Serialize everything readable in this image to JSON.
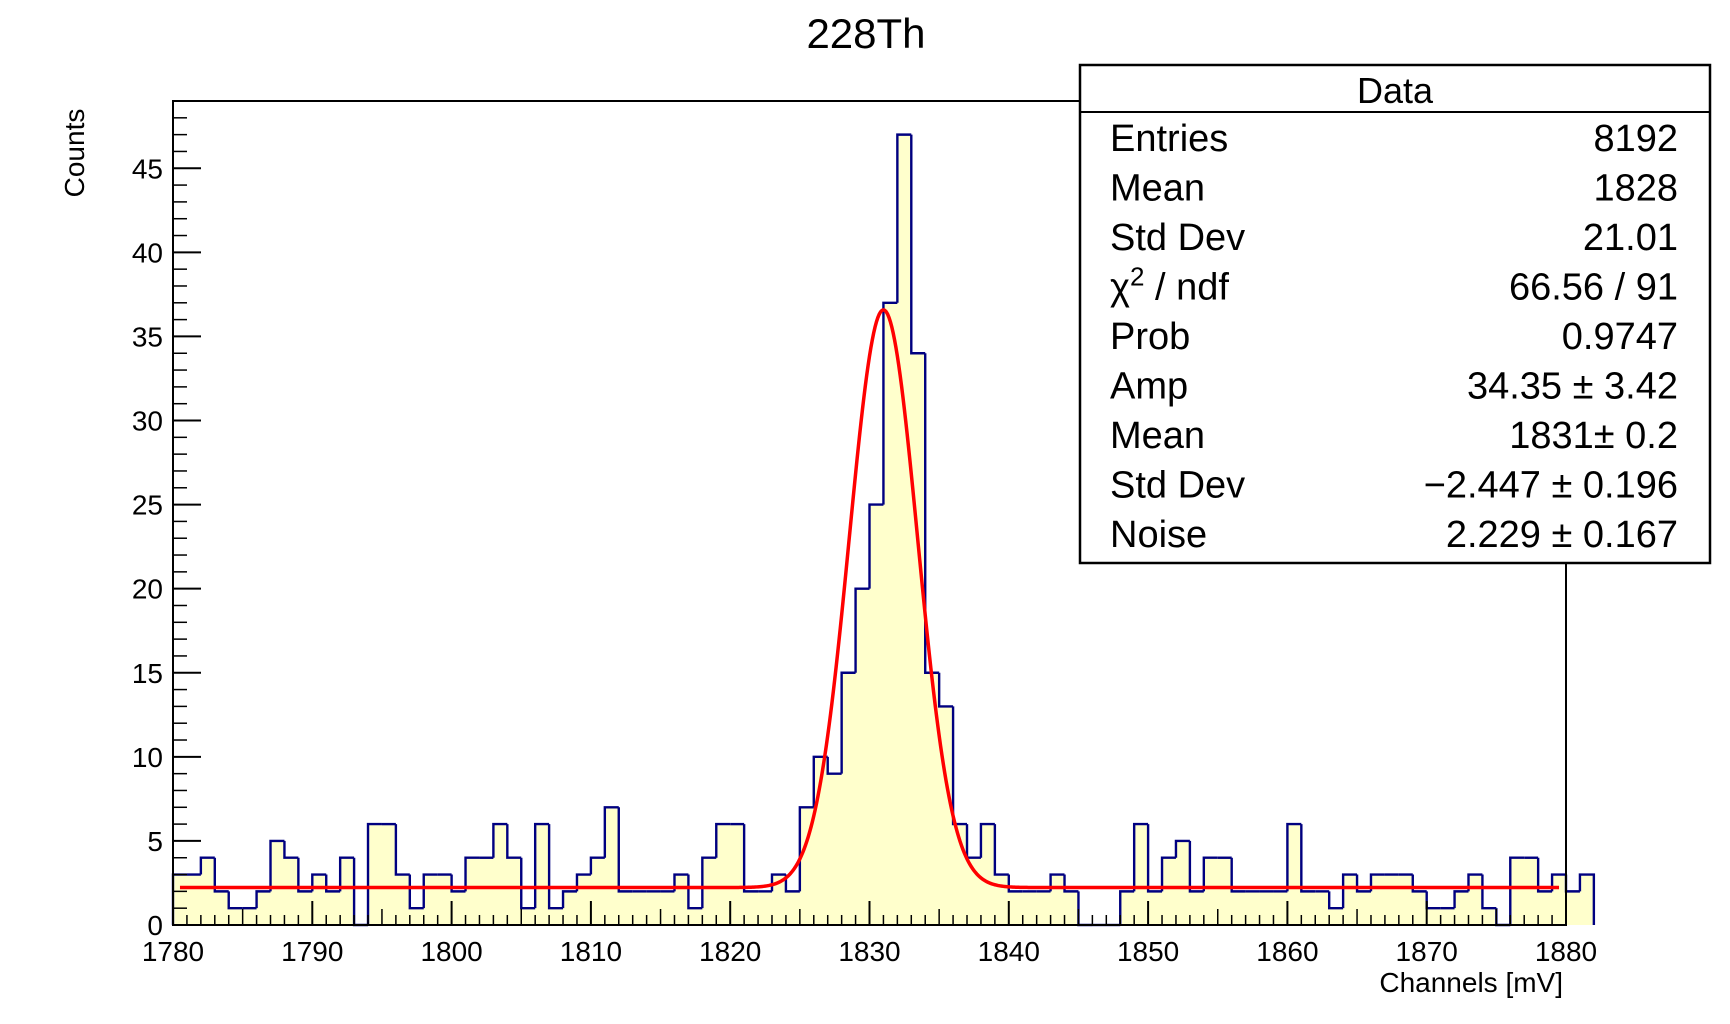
{
  "chart_data": {
    "type": "histogram",
    "title": "228Th",
    "xlabel": "Channels [mV]",
    "ylabel": "Counts",
    "xlim": [
      1780,
      1880
    ],
    "ylim": [
      0,
      49
    ],
    "x_ticks": [
      1780,
      1790,
      1800,
      1810,
      1820,
      1830,
      1840,
      1850,
      1860,
      1870,
      1880
    ],
    "y_ticks": [
      0,
      5,
      10,
      15,
      20,
      25,
      30,
      35,
      40,
      45
    ],
    "bin_width": 1,
    "counts": [
      3,
      3,
      4,
      2,
      1,
      1,
      2,
      5,
      4,
      2,
      3,
      2,
      4,
      0,
      6,
      6,
      3,
      1,
      3,
      3,
      2,
      4,
      4,
      6,
      4,
      1,
      6,
      1,
      2,
      3,
      4,
      7,
      2,
      2,
      2,
      2,
      3,
      1,
      4,
      6,
      6,
      2,
      2,
      3,
      2,
      7,
      10,
      9,
      15,
      20,
      25,
      37,
      47,
      34,
      15,
      13,
      6,
      4,
      6,
      3,
      2,
      2,
      2,
      3,
      2,
      0,
      0,
      0,
      2,
      6,
      2,
      4,
      5,
      2,
      4,
      4,
      2,
      2,
      2,
      2,
      6,
      2,
      2,
      1,
      3,
      2,
      3,
      3,
      3,
      2,
      1,
      1,
      2,
      3,
      1,
      0,
      4,
      4,
      2,
      3,
      2,
      3
    ],
    "fit_curve": {
      "color": "#ff0000",
      "type": "gaussian-plus-constant",
      "amp": 34.35,
      "mean": 1831,
      "sigma": -2.447,
      "noise": 2.229
    },
    "histogram_line_color": "#000080",
    "histogram_fill_color": "#ffffcc",
    "legend_placement": "top-right",
    "stats_box": {
      "header": "Data",
      "rows": [
        {
          "label": "Entries",
          "value": "8192"
        },
        {
          "label": "Mean",
          "value": "1828"
        },
        {
          "label": "Std Dev",
          "value": "21.01"
        },
        {
          "label": "χ",
          "label_sup": "2",
          "label_suffix": " / ndf",
          "value": "66.56 / 91"
        },
        {
          "label": "Prob",
          "value": "0.9747"
        },
        {
          "label": "Amp",
          "value": "34.35 ± 3.42"
        },
        {
          "label": "Mean",
          "value": "1831± 0.2"
        },
        {
          "label": "Std Dev",
          "value": "−2.447 ± 0.196"
        },
        {
          "label": "Noise",
          "value": "2.229 ± 0.167"
        }
      ]
    }
  }
}
